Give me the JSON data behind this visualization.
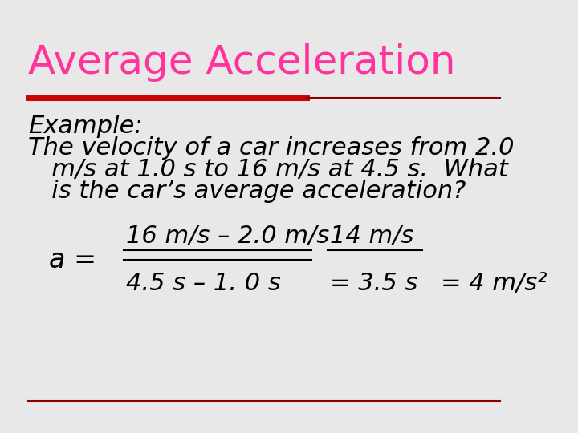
{
  "title": "Average Acceleration",
  "title_color": "#FF3399",
  "title_fontsize": 36,
  "background_color": "#E8E8E8",
  "body_color": "#000000",
  "example_label": "Example:",
  "body_text_line1": "The velocity of a car increases from 2.0",
  "body_text_line2": "   m/s at 1.0 s to 16 m/s at 4.5 s.  What",
  "body_text_line3": "   is the car’s average acceleration?",
  "numerator_text": "16 m/s – 2.0 m/s",
  "denominator_text": "4.5 s – 1. 0 s",
  "fraction_result_num": "14 m/s",
  "fraction_result_den": "= 3.5 s",
  "final_result": "= 4 m/s²",
  "a_label": "a =",
  "body_fontsize": 22,
  "eq_fontsize": 22
}
